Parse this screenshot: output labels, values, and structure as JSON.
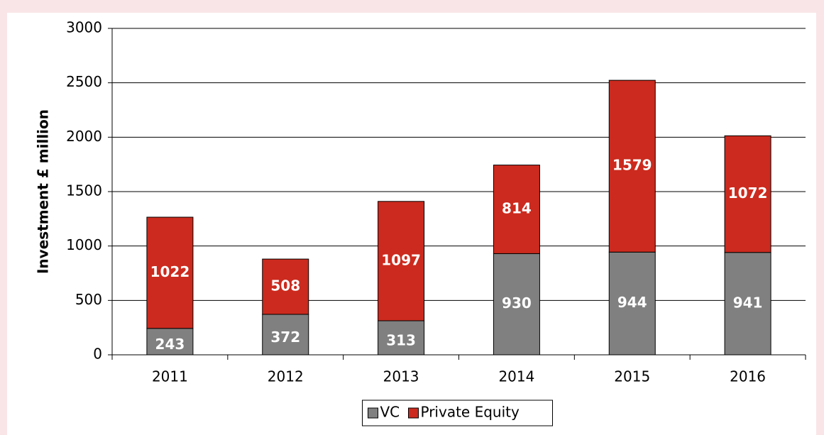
{
  "chart_data": {
    "type": "stacked_bar",
    "y_label": "Investment £ million",
    "categories": [
      "2011",
      "2012",
      "2013",
      "2014",
      "2015",
      "2016"
    ],
    "series": [
      {
        "name": "VC",
        "color": "#808080",
        "values": [
          243,
          372,
          313,
          930,
          944,
          941
        ]
      },
      {
        "name": "Private Equity",
        "color": "#cc2a1e",
        "values": [
          1022,
          508,
          1097,
          814,
          1579,
          1072
        ]
      }
    ],
    "ylim": [
      0,
      3000
    ],
    "yticks": [
      0,
      500,
      1000,
      1500,
      2000,
      2500,
      3000
    ],
    "grid": true,
    "legend": "bottom"
  }
}
